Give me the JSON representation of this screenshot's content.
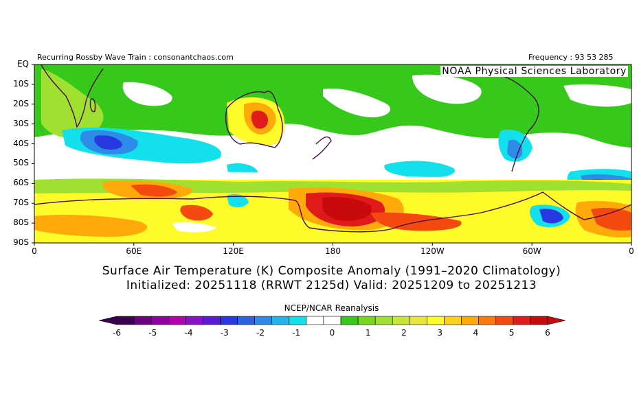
{
  "header": {
    "left": "Recurring Rossby Wave Train : consonantchaos.com",
    "right": "Frequency : 93 53 285"
  },
  "lab_note": "NOAA Physical Sciences Laboratory",
  "titles": {
    "line1": "Surface Air Temperature (K) Composite Anomaly (1991–2020 Climatology)",
    "line2": "Initialized: 20251118 (RRWT 2125d) Valid: 20251209 to 20251213"
  },
  "source": "NCEP/NCAR Reanalysis",
  "lat_labels": [
    "EQ",
    "10S",
    "20S",
    "30S",
    "40S",
    "50S",
    "60S",
    "70S",
    "80S",
    "90S"
  ],
  "lon_labels": [
    "0",
    "60E",
    "120E",
    "180",
    "120W",
    "60W",
    "0"
  ],
  "colorbar": {
    "colors": [
      "#3c0050",
      "#6a0080",
      "#9000a0",
      "#b000b0",
      "#8a10c8",
      "#5a1ad8",
      "#2838e0",
      "#2a64e0",
      "#2e8ce8",
      "#22b4ea",
      "#12e0ea",
      "#ffffff",
      "#ffffff",
      "#36c81a",
      "#78d71e",
      "#a0e030",
      "#c8e63a",
      "#e6e63c",
      "#fffa2a",
      "#ffd21e",
      "#ffaa0a",
      "#ff7a0a",
      "#f54a0f",
      "#e01a1a",
      "#c80a0a"
    ],
    "tick_labels": [
      "-6",
      "-5",
      "-4",
      "-3",
      "-2",
      "-1",
      "0",
      "1",
      "2",
      "3",
      "4",
      "5",
      "6"
    ]
  },
  "colors": {
    "green": "#36c81a",
    "yellow_green": "#a0e030",
    "yellow": "#fffa2a",
    "orange": "#ffaa0a",
    "red": "#e01a1a",
    "dark_red": "#c80a0a",
    "cyan": "#12e0ea",
    "light_blue": "#2e8ce8",
    "blue": "#2838e0",
    "violet": "#5a1ad8",
    "coast": "#4a0a40"
  }
}
